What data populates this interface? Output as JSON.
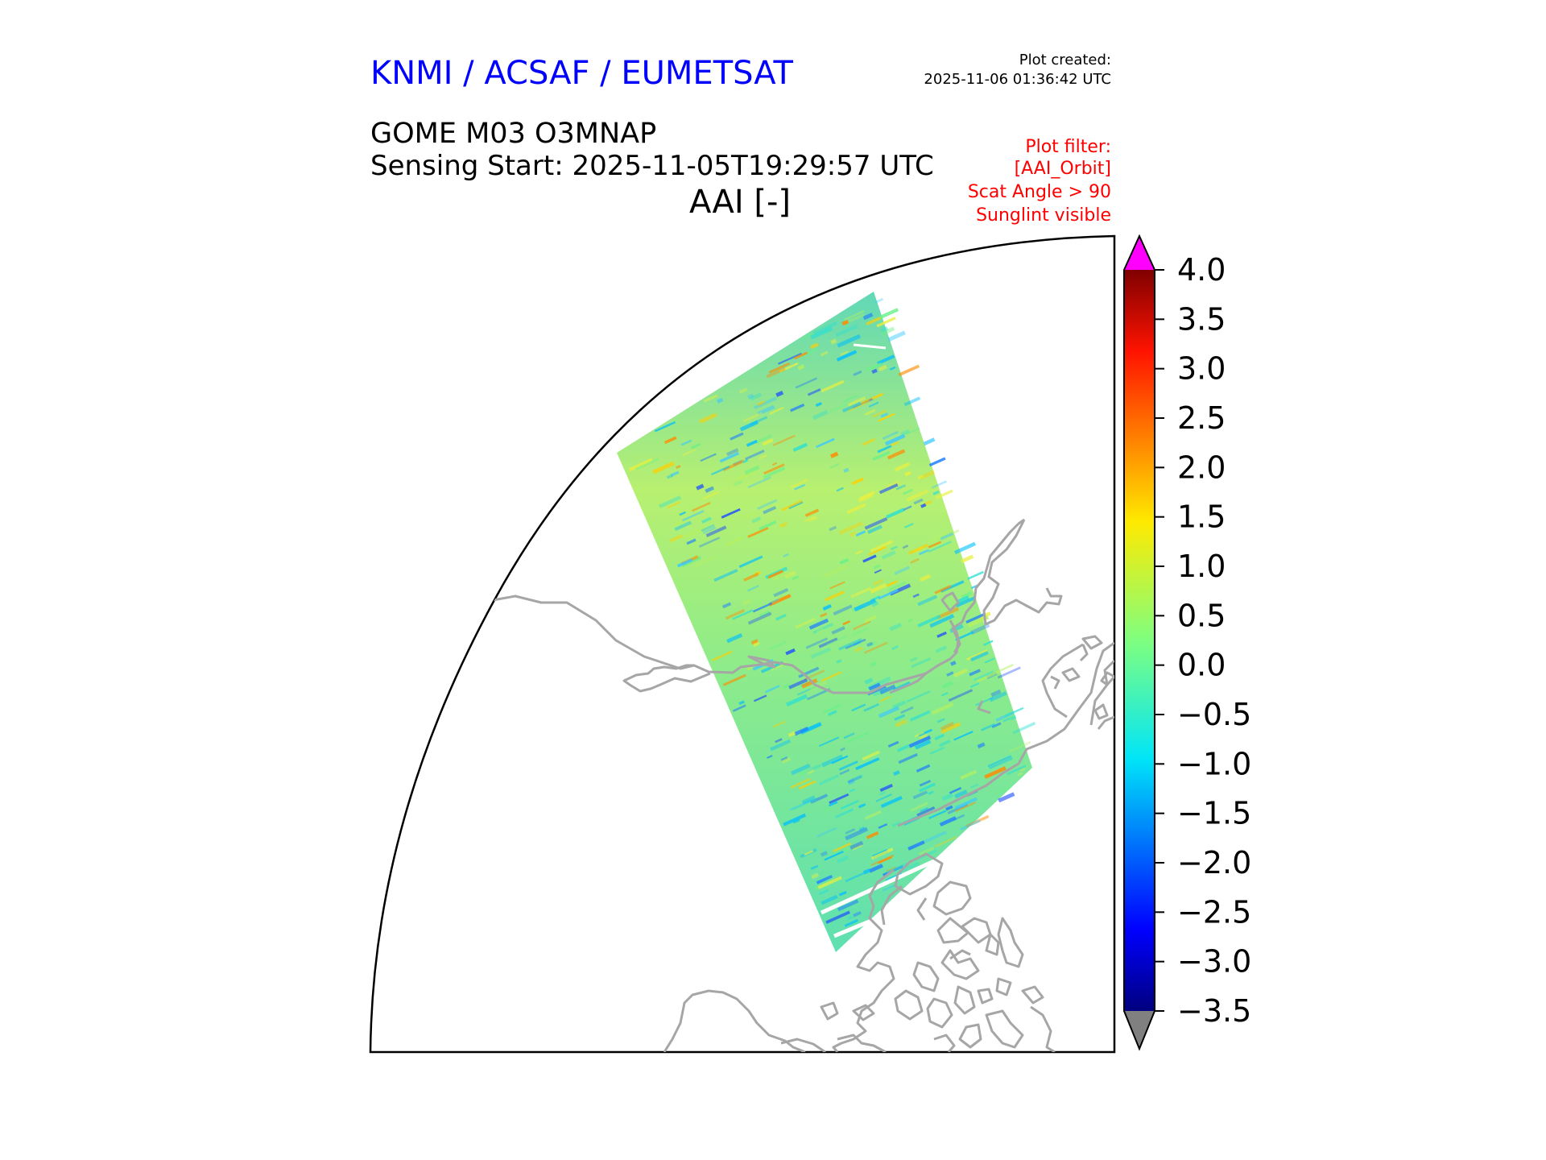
{
  "header": {
    "provider": "KNMI / ACSAF / EUMETSAT",
    "plot_created_label": "Plot created:",
    "plot_created_time": "2025-11-06 01:36:42 UTC",
    "product": "GOME M03 O3MNAP",
    "sensing_start": "Sensing Start: 2025-11-05T19:29:57 UTC",
    "quantity": "AAI [-]"
  },
  "plot_filter": {
    "title": "Plot filter:",
    "lines": [
      "[AAI_Orbit]",
      "Scat Angle > 90",
      "Sunglint visible"
    ]
  },
  "colorbar": {
    "min": -3.5,
    "max": 4.0,
    "tick_labels": [
      "4.0",
      "3.5",
      "3.0",
      "2.5",
      "2.0",
      "1.5",
      "1.0",
      "0.5",
      "0.0",
      "−0.5",
      "−1.0",
      "−1.5",
      "−2.0",
      "−2.5",
      "−3.0",
      "−3.5"
    ],
    "over_color": "#ff00ff",
    "under_color": "#808080",
    "colormap": "jet"
  },
  "colors": {
    "coastline": "#a6a6a6",
    "title": "#0000ff",
    "filter_text": "#ff0000"
  }
}
